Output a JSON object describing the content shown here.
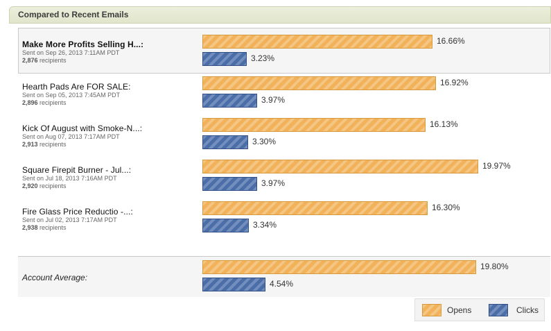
{
  "header": {
    "title": "Compared to Recent Emails"
  },
  "emails": [
    {
      "title": "Make More Profits Selling H...:",
      "sent": "Sent on Sep 26, 2013 7:11AM PDT",
      "recipients_count": "2,876",
      "recipients_label": "recipients",
      "opens": 16.66,
      "opens_label": "16.66%",
      "clicks": 3.23,
      "clicks_label": "3.23%",
      "selected": true
    },
    {
      "title": "Hearth Pads Are FOR SALE:",
      "sent": "Sent on Sep 05, 2013 7:45AM PDT",
      "recipients_count": "2,896",
      "recipients_label": "recipients",
      "opens": 16.92,
      "opens_label": "16.92%",
      "clicks": 3.97,
      "clicks_label": "3.97%",
      "selected": false
    },
    {
      "title": "Kick Of August with Smoke-N...:",
      "sent": "Sent on Aug 07, 2013 7:17AM PDT",
      "recipients_count": "2,913",
      "recipients_label": "recipients",
      "opens": 16.13,
      "opens_label": "16.13%",
      "clicks": 3.3,
      "clicks_label": "3.30%",
      "selected": false
    },
    {
      "title": "Square Firepit Burner - Jul...:",
      "sent": "Sent on Jul 18, 2013 7:16AM PDT",
      "recipients_count": "2,920",
      "recipients_label": "recipients",
      "opens": 19.97,
      "opens_label": "19.97%",
      "clicks": 3.97,
      "clicks_label": "3.97%",
      "selected": false
    },
    {
      "title": "Fire Glass Price Reductio -...:",
      "sent": "Sent on Jul 02, 2013 7:17AM PDT",
      "recipients_count": "2,938",
      "recipients_label": "recipients",
      "opens": 16.3,
      "opens_label": "16.30%",
      "clicks": 3.34,
      "clicks_label": "3.34%",
      "selected": false
    }
  ],
  "average": {
    "label": "Account Average:",
    "opens": 19.8,
    "opens_label": "19.80%",
    "clicks": 4.54,
    "clicks_label": "4.54%"
  },
  "legend": {
    "opens_label": "Opens",
    "clicks_label": "Clicks"
  },
  "colors": {
    "opens": "#f2b25a",
    "clicks": "#4b6ea9",
    "header_bg": "#e1e5cb"
  }
}
